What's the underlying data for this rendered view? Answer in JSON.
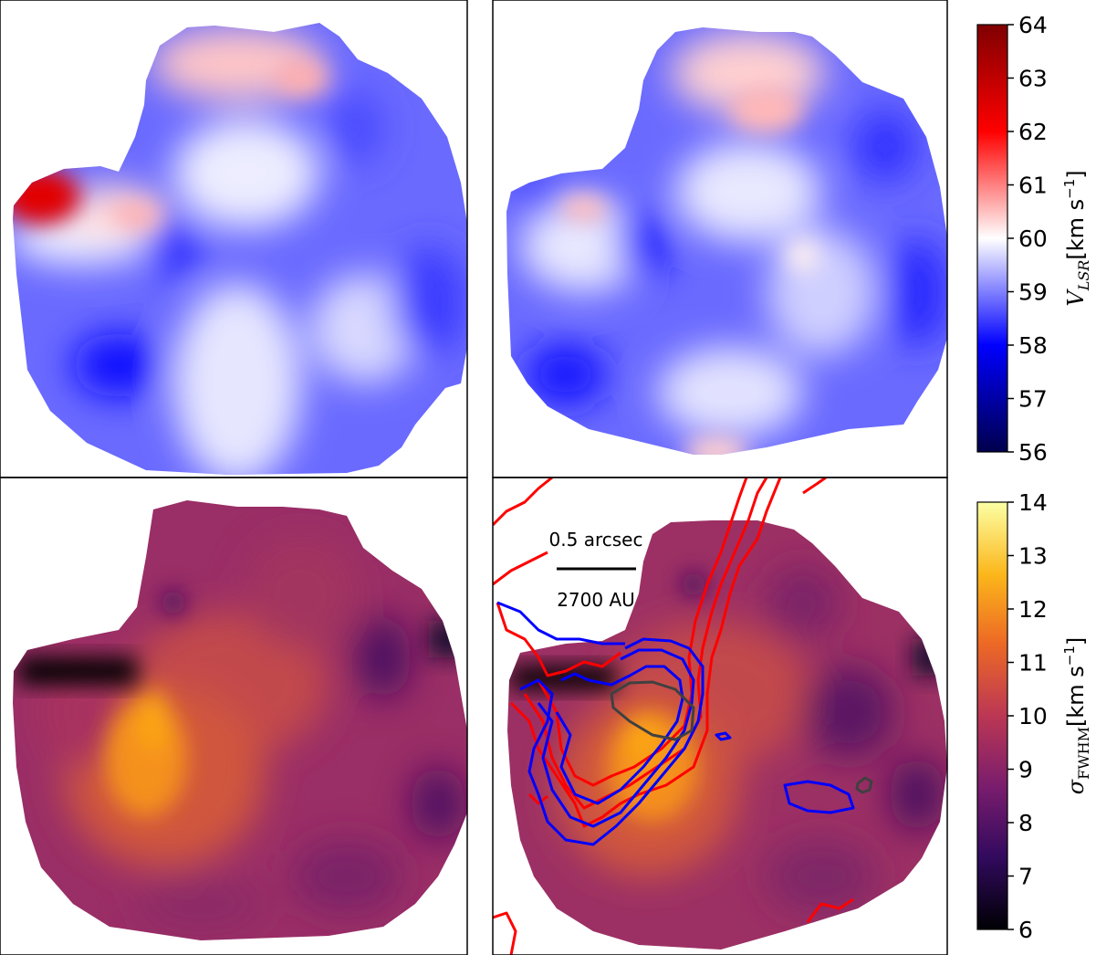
{
  "chart_data": [
    {
      "type": "heatmap",
      "panel": "top-left",
      "quantity": "velocity",
      "colormap": "seismic",
      "clim": [
        56,
        64
      ],
      "features": [
        {
          "label": "red blob west",
          "value": 62.8
        },
        {
          "label": "pink blob west",
          "value": 61.0
        },
        {
          "label": "pink blob north",
          "value": 61.0
        },
        {
          "label": "blue lobe southwest",
          "value": 57.3
        },
        {
          "label": "blue lobe east",
          "value": 57.8
        }
      ]
    },
    {
      "type": "heatmap",
      "panel": "top-right",
      "quantity": "velocity",
      "colormap": "seismic",
      "clim": [
        56,
        64
      ],
      "features": [
        {
          "label": "pink blob north",
          "value": 61.0
        },
        {
          "label": "pink blob west",
          "value": 60.7
        },
        {
          "label": "pale spot center",
          "value": 60.3
        },
        {
          "label": "blue lobe west",
          "value": 57.2
        },
        {
          "label": "blue lobe southwest",
          "value": 57.3
        }
      ]
    },
    {
      "type": "heatmap",
      "panel": "bottom-left",
      "quantity": "linewidth",
      "colormap": "inferno",
      "clim": [
        6,
        14
      ],
      "features": [
        {
          "label": "bright core southwest",
          "value": 12.3
        },
        {
          "label": "dark patch northwest edge",
          "value": 6.3
        },
        {
          "label": "dark patch east",
          "value": 7.8
        }
      ]
    },
    {
      "type": "heatmap",
      "panel": "bottom-right",
      "quantity": "linewidth",
      "colormap": "inferno",
      "clim": [
        6,
        14
      ],
      "features": [
        {
          "label": "bright core south",
          "value": 12.0
        },
        {
          "label": "dark patch northwest edge",
          "value": 6.3
        },
        {
          "label": "dark patch east",
          "value": 7.6
        }
      ],
      "contours": [
        {
          "color": "#ff0000",
          "levels": 3
        },
        {
          "color": "#0000ff",
          "levels": 3
        },
        {
          "color": "#404040",
          "levels": 1
        }
      ],
      "annotations": {
        "scalebar_top": "0.5 arcsec",
        "scalebar_bottom": "2700 AU"
      }
    }
  ],
  "colorbars": [
    {
      "ticks": [
        64,
        63,
        62,
        61,
        60,
        59,
        58,
        57,
        56
      ],
      "label_main": "V",
      "label_sub": "LSR",
      "label_units": "[km s",
      "label_exp": "−1",
      "label_close": "]"
    },
    {
      "ticks": [
        14,
        13,
        12,
        11,
        10,
        9,
        8,
        7,
        6
      ],
      "label_main": "σ",
      "label_sub": "FWHM",
      "label_units": "[km s",
      "label_exp": "−1",
      "label_close": "]"
    }
  ],
  "colors": {
    "seismic": [
      "#00004c",
      "#0000ff",
      "#ffffff",
      "#ff0000",
      "#7f0000"
    ],
    "inferno": [
      "#000004",
      "#320a5e",
      "#781c6d",
      "#bb3754",
      "#ed6925",
      "#fbb61a",
      "#fcffa4"
    ],
    "contour_red": "#ff0000",
    "contour_blue": "#0000ff",
    "contour_gray": "#404040"
  }
}
